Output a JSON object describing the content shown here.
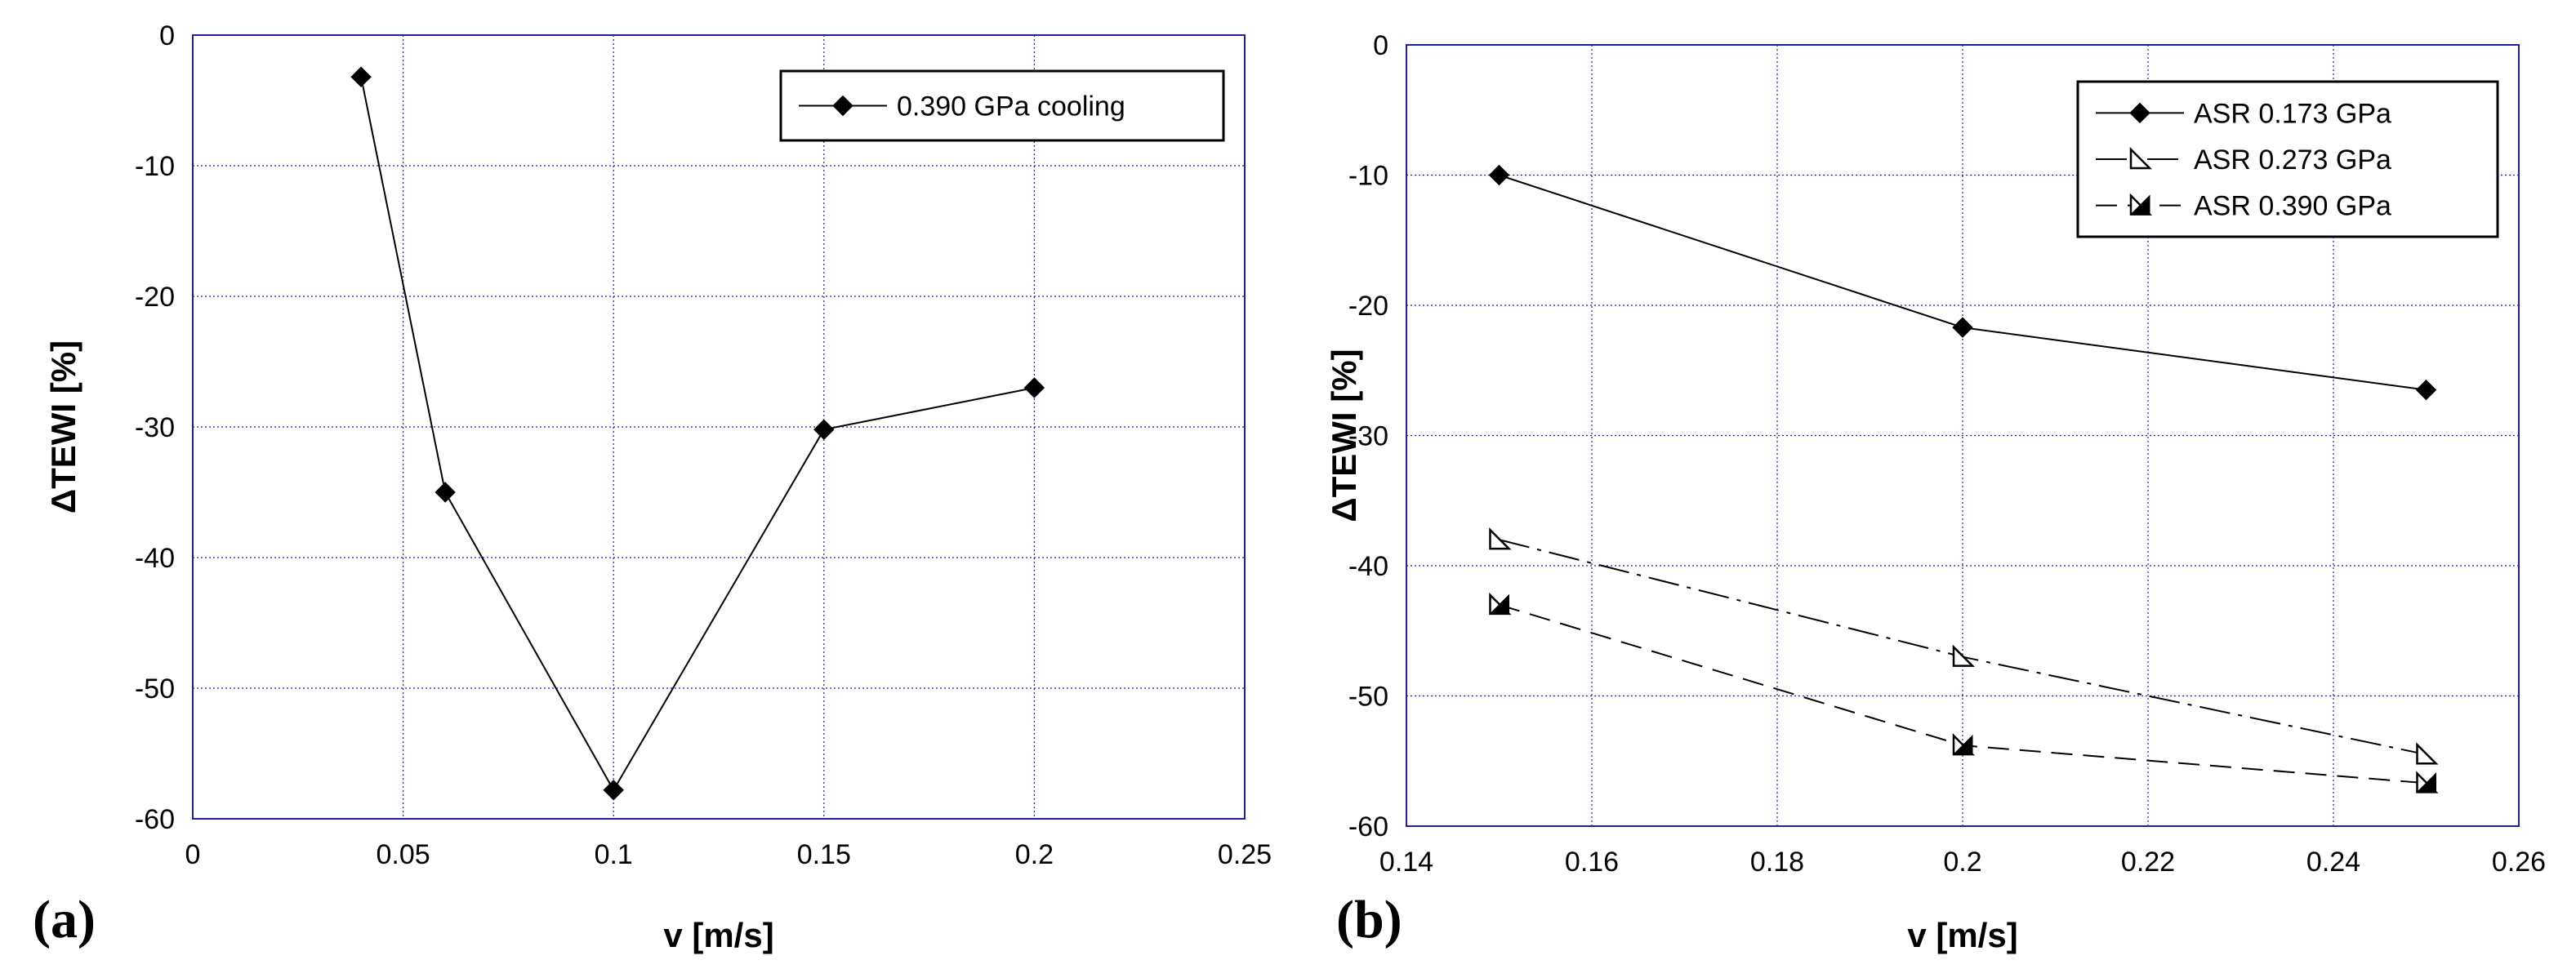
{
  "chart_data": [
    {
      "panel": "(a)",
      "type": "line",
      "xlabel": "v [m/s]",
      "ylabel": "ΔTEWI [%]",
      "xlim": [
        0,
        0.25
      ],
      "ylim": [
        -60,
        0
      ],
      "xticks": [
        "0",
        "0.05",
        "0.1",
        "0.15",
        "0.2",
        "0.25"
      ],
      "yticks": [
        "0",
        "-10",
        "-20",
        "-30",
        "-40",
        "-50",
        "-60"
      ],
      "grid": true,
      "legend_position": "top-right",
      "series": [
        {
          "name": "0.390 GPa cooling",
          "marker": "diamond-filled",
          "line": "solid",
          "x": [
            0.04,
            0.06,
            0.1,
            0.15,
            0.2
          ],
          "y": [
            -3.2,
            -35.0,
            -57.8,
            -30.2,
            -27.0
          ]
        }
      ]
    },
    {
      "panel": "(b)",
      "type": "line",
      "xlabel": "v [m/s]",
      "ylabel": "ΔTEWI [%]",
      "xlim": [
        0.14,
        0.26
      ],
      "ylim": [
        -60,
        0
      ],
      "xticks": [
        "0.14",
        "0.16",
        "0.18",
        "0.2",
        "0.22",
        "0.24",
        "0.26"
      ],
      "yticks": [
        "0",
        "-10",
        "-20",
        "-30",
        "-40",
        "-50",
        "-60"
      ],
      "grid": true,
      "legend_position": "top-right",
      "series": [
        {
          "name": "ASR 0.173 GPa",
          "marker": "diamond-filled",
          "line": "solid",
          "x": [
            0.15,
            0.2,
            0.25
          ],
          "y": [
            -10.0,
            -21.7,
            -26.5
          ]
        },
        {
          "name": "ASR 0.273 GPa",
          "marker": "triangle-open",
          "line": "dashdot",
          "x": [
            0.15,
            0.2,
            0.25
          ],
          "y": [
            -38.0,
            -47.0,
            -54.5
          ]
        },
        {
          "name": "ASR 0.390 GPa",
          "marker": "triangle-half",
          "line": "dashed",
          "x": [
            0.15,
            0.2,
            0.25
          ],
          "y": [
            -43.0,
            -53.8,
            -56.7
          ]
        }
      ]
    }
  ]
}
